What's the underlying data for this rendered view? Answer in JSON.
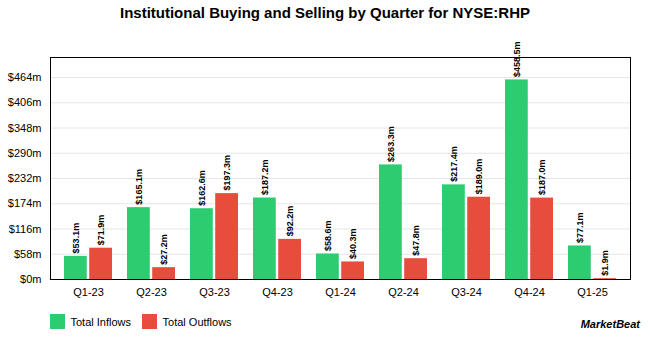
{
  "chart_data": {
    "type": "bar",
    "title": "Institutional Buying and Selling by Quarter for NYSE:RHP",
    "categories": [
      "Q1-23",
      "Q2-23",
      "Q3-23",
      "Q4-23",
      "Q1-24",
      "Q2-24",
      "Q3-24",
      "Q4-24",
      "Q1-25"
    ],
    "series": [
      {
        "name": "Total Inflows",
        "color": "#2ecc71",
        "values": [
          53.1,
          165.1,
          162.6,
          187.2,
          58.6,
          263.3,
          217.4,
          458.5,
          77.1
        ],
        "value_labels": [
          "$53.1m",
          "$165.1m",
          "$162.6m",
          "$187.2m",
          "$58.6m",
          "$263.3m",
          "$217.4m",
          "$458.5m",
          "$77.1m"
        ]
      },
      {
        "name": "Total Outflows",
        "color": "#e74c3c",
        "values": [
          71.9,
          27.2,
          197.3,
          92.2,
          40.3,
          47.8,
          189.0,
          187.0,
          1.9
        ],
        "value_labels": [
          "$71.9m",
          "$27.2m",
          "$197.3m",
          "$92.2m",
          "$40.3m",
          "$47.8m",
          "$189.0m",
          "$187.0m",
          "$1.9m"
        ]
      }
    ],
    "ylim": [
      0,
      510
    ],
    "yticks": [
      {
        "value": 0,
        "label": "$0m"
      },
      {
        "value": 58,
        "label": "$58m"
      },
      {
        "value": 116,
        "label": "$116m"
      },
      {
        "value": 174,
        "label": "$174m"
      },
      {
        "value": 232,
        "label": "$232m"
      },
      {
        "value": 290,
        "label": "$290m"
      },
      {
        "value": 348,
        "label": "$348m"
      },
      {
        "value": 406,
        "label": "$406m"
      },
      {
        "value": 464,
        "label": "$464m"
      }
    ],
    "grid": true,
    "data_labels": true,
    "legend": "lower left",
    "annotations": [
      "MarketBeat"
    ]
  }
}
